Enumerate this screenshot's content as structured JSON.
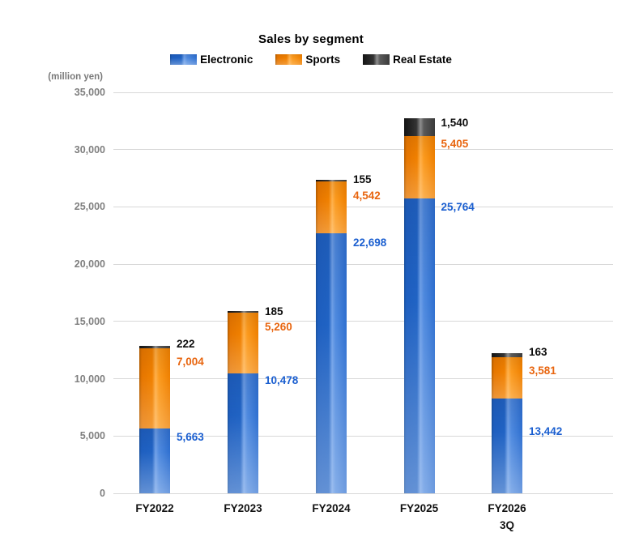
{
  "title": "Sales by segment",
  "unit_label": "(million yen)",
  "legend": [
    {
      "label": "Electronic",
      "key": "electronic"
    },
    {
      "label": "Sports",
      "key": "sports"
    },
    {
      "label": "Real Estate",
      "key": "realestate"
    }
  ],
  "colors": {
    "electronic_bar": "#2063c4",
    "sports_bar": "#f08000",
    "realestate_bar": "#3a3a3a",
    "electronic_label_text": "#1b5fd0",
    "sports_label_text": "#e8650f",
    "realestate_label_text": "#0d0d0d",
    "gridline": "#d8d8d8",
    "tick_text": "#7f7f7f"
  },
  "chart_data": {
    "type": "bar",
    "stacked": true,
    "title": "Sales by segment",
    "ylabel": "(million yen)",
    "xlabel": "",
    "ylim": [
      0,
      35000
    ],
    "y_tick_step": 5000,
    "y_tick_labels": [
      "0",
      "5,000",
      "10,000",
      "15,000",
      "20,000",
      "25,000",
      "30,000",
      "35,000"
    ],
    "grid": true,
    "legend_position": "top",
    "categories": [
      "FY2022",
      "FY2023",
      "FY2024",
      "FY2025",
      "FY2026 3Q"
    ],
    "series": [
      {
        "name": "Electronic",
        "values": [
          5663,
          10478,
          22698,
          25764,
          13442
        ]
      },
      {
        "name": "Sports",
        "values": [
          7004,
          5260,
          4542,
          5405,
          3581
        ]
      },
      {
        "name": "Real Estate",
        "values": [
          222,
          185,
          155,
          1540,
          163
        ]
      }
    ],
    "data_labels": [
      [
        "5,663",
        "7,004",
        "222"
      ],
      [
        "10,478",
        "5,260",
        "185"
      ],
      [
        "22,698",
        "4,542",
        "155"
      ],
      [
        "25,764",
        "5,405",
        "1,540"
      ],
      [
        "13,442",
        "3,581",
        "163"
      ]
    ],
    "segments_as_drawn_units": [
      [
        5663,
        7004,
        222
      ],
      [
        10478,
        5260,
        185
      ],
      [
        22698,
        4542,
        155
      ],
      [
        25764,
        5405,
        1540
      ],
      [
        8300,
        3581,
        350
      ]
    ]
  },
  "x_axis": {
    "categories": [
      {
        "lines": [
          "FY2022"
        ]
      },
      {
        "lines": [
          "FY2023"
        ]
      },
      {
        "lines": [
          "FY2024"
        ]
      },
      {
        "lines": [
          "FY2025"
        ]
      },
      {
        "lines": [
          "FY2026",
          "3Q"
        ]
      }
    ]
  }
}
